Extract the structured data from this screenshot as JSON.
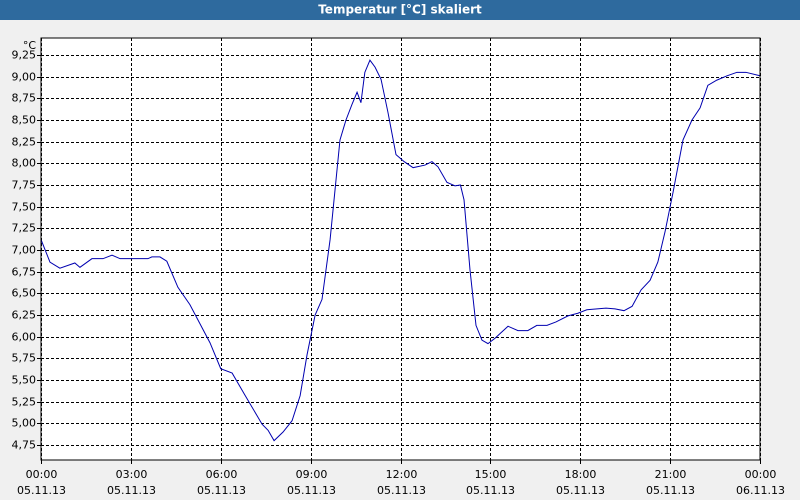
{
  "chart_data": {
    "type": "line",
    "title": "Temperatur [°C] skaliert",
    "y_unit": "°C",
    "grid": true,
    "color": "#0000b0",
    "xlim": [
      0,
      24
    ],
    "ylim": [
      4.577,
      9.446
    ],
    "xticks": [
      {
        "value": 0,
        "label": "00:00"
      },
      {
        "value": 3,
        "label": "03:00"
      },
      {
        "value": 6,
        "label": "06:00"
      },
      {
        "value": 9,
        "label": "09:00"
      },
      {
        "value": 12,
        "label": "12:00"
      },
      {
        "value": 15,
        "label": "15:00"
      },
      {
        "value": 18,
        "label": "18:00"
      },
      {
        "value": 21,
        "label": "21:00"
      },
      {
        "value": 24,
        "label": "00:00"
      }
    ],
    "xtick_dates": [
      "05.11.13",
      "05.11.13",
      "05.11.13",
      "05.11.13",
      "05.11.13",
      "05.11.13",
      "05.11.13",
      "05.11.13",
      "06.11.13"
    ],
    "yticks": [
      {
        "value": 4.75,
        "label": "4,75"
      },
      {
        "value": 5,
        "label": "5,00"
      },
      {
        "value": 5.25,
        "label": "5,25"
      },
      {
        "value": 5.5,
        "label": "5,50"
      },
      {
        "value": 5.75,
        "label": "5,75"
      },
      {
        "value": 6,
        "label": "6,00"
      },
      {
        "value": 6.25,
        "label": "6,25"
      },
      {
        "value": 6.5,
        "label": "6,50"
      },
      {
        "value": 6.75,
        "label": "6,75"
      },
      {
        "value": 7,
        "label": "7,00"
      },
      {
        "value": 7.25,
        "label": "7,25"
      },
      {
        "value": 7.5,
        "label": "7,50"
      },
      {
        "value": 7.75,
        "label": "7,75"
      },
      {
        "value": 8,
        "label": "8,00"
      },
      {
        "value": 8.25,
        "label": "8,25"
      },
      {
        "value": 8.5,
        "label": "8,50"
      },
      {
        "value": 8.75,
        "label": "8,75"
      },
      {
        "value": 9,
        "label": "9,00"
      },
      {
        "value": 9.25,
        "label": "9,25"
      }
    ],
    "x": [
      0,
      0.3,
      0.63,
      1.13,
      1.3,
      1.7,
      2.07,
      2.37,
      2.64,
      3.57,
      3.7,
      3.97,
      4.2,
      4.57,
      4.97,
      5.64,
      6.0,
      6.38,
      6.8,
      7.38,
      7.58,
      7.78,
      8.08,
      8.38,
      8.65,
      8.88,
      9.15,
      9.38,
      9.65,
      9.98,
      10.18,
      10.38,
      10.55,
      10.68,
      10.81,
      10.98,
      11.15,
      11.35,
      11.58,
      11.85,
      12.12,
      12.42,
      12.82,
      13.05,
      13.25,
      13.55,
      13.82,
      14.0,
      14.12,
      14.32,
      14.52,
      14.72,
      14.92,
      15.15,
      15.59,
      15.92,
      16.25,
      16.55,
      16.89,
      17.19,
      17.59,
      17.92,
      18.22,
      18.56,
      18.86,
      19.16,
      19.46,
      19.73,
      20.03,
      20.33,
      20.59,
      20.83,
      21.1,
      21.43,
      21.73,
      22.0,
      22.26,
      22.56,
      22.9,
      23.23,
      23.53,
      24.0
    ],
    "values": [
      7.12,
      6.86,
      6.79,
      6.85,
      6.8,
      6.9,
      6.9,
      6.94,
      6.9,
      6.9,
      6.92,
      6.92,
      6.87,
      6.57,
      6.37,
      5.93,
      5.63,
      5.58,
      5.33,
      4.99,
      4.92,
      4.8,
      4.9,
      5.03,
      5.32,
      5.79,
      6.25,
      6.43,
      7.12,
      8.27,
      8.5,
      8.68,
      8.82,
      8.7,
      9.05,
      9.19,
      9.11,
      8.97,
      8.59,
      8.1,
      8.02,
      7.95,
      7.98,
      8.02,
      7.96,
      7.78,
      7.74,
      7.75,
      7.58,
      6.77,
      6.13,
      5.96,
      5.92,
      5.98,
      6.12,
      6.07,
      6.07,
      6.13,
      6.13,
      6.17,
      6.24,
      6.27,
      6.31,
      6.32,
      6.33,
      6.32,
      6.3,
      6.35,
      6.54,
      6.65,
      6.86,
      7.21,
      7.67,
      8.27,
      8.5,
      8.64,
      8.9,
      8.96,
      9.01,
      9.05,
      9.05,
      9.01
    ]
  }
}
